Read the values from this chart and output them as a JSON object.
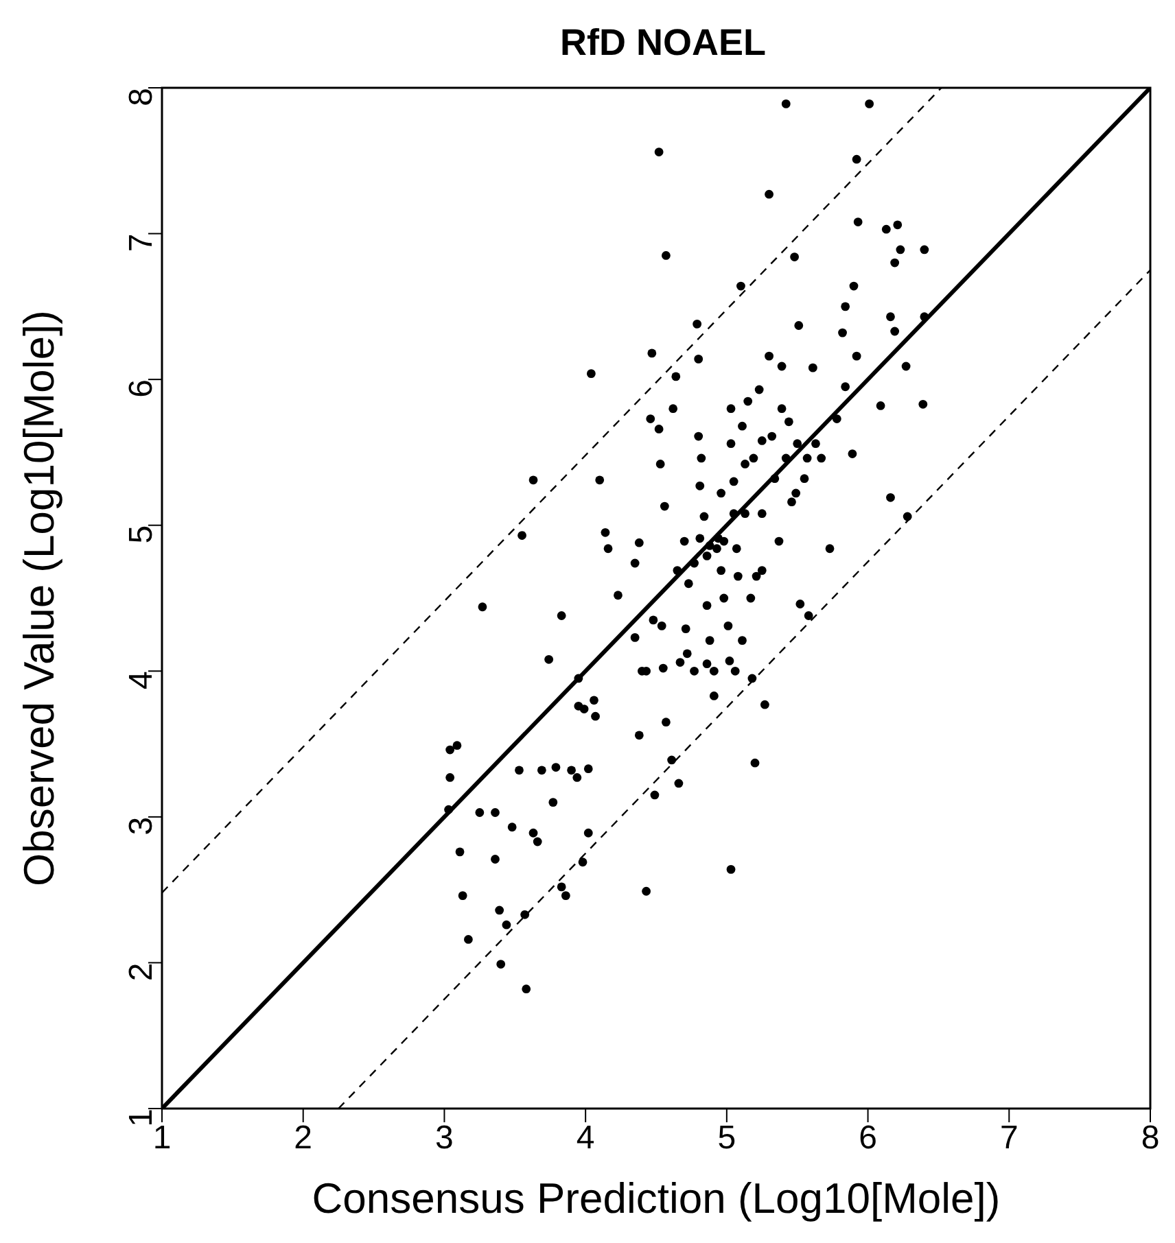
{
  "chart_data": {
    "type": "scatter",
    "title": "RfD NOAEL",
    "xlabel": "Consensus Prediction (Log10[Mole])",
    "ylabel": "Observed Value (Log10[Mole])",
    "xlim": [
      1,
      8
    ],
    "ylim": [
      1,
      8
    ],
    "xticks": [
      1,
      2,
      3,
      4,
      5,
      6,
      7,
      8
    ],
    "yticks": [
      1,
      2,
      3,
      4,
      5,
      6,
      7,
      8
    ],
    "series": [
      {
        "color": "#000000",
        "marker": "circle",
        "x": [
          3.04,
          3.09,
          3.04,
          3.03,
          3.11,
          3.13,
          3.17,
          3.27,
          3.25,
          3.36,
          3.36,
          3.39,
          3.4,
          3.44,
          3.53,
          3.55,
          3.48,
          3.57,
          3.58,
          3.63,
          3.63,
          3.66,
          3.69,
          3.74,
          3.77,
          3.79,
          3.83,
          3.83,
          3.86,
          3.9,
          3.94,
          3.95,
          3.95,
          3.98,
          3.99,
          4.02,
          4.02,
          4.04,
          4.06,
          4.07,
          4.1,
          4.16,
          4.14,
          4.23,
          4.35,
          4.35,
          4.38,
          4.4,
          4.38,
          4.43,
          4.46,
          4.47,
          4.52,
          4.52,
          4.49,
          4.43,
          4.48,
          4.53,
          4.57,
          4.56,
          4.54,
          4.55,
          4.57,
          4.61,
          4.62,
          4.64,
          4.65,
          4.66,
          4.7,
          4.71,
          4.72,
          4.73,
          4.77,
          4.79,
          4.8,
          4.8,
          4.82,
          4.81,
          4.84,
          4.86,
          4.86,
          4.88,
          4.91,
          4.91,
          4.94,
          4.96,
          4.98,
          5.01,
          5.02,
          5.03,
          5.03,
          5.03,
          5.05,
          5.05,
          5.07,
          5.08,
          5.1,
          5.11,
          5.13,
          5.15,
          5.17,
          5.18,
          5.2,
          5.23,
          5.25,
          5.27,
          5.3,
          5.3,
          5.32,
          5.34,
          5.37,
          5.39,
          5.42,
          5.42,
          5.44,
          5.46,
          5.48,
          5.5,
          5.51,
          5.52,
          5.55,
          5.58,
          5.61,
          5.63,
          5.67,
          5.73,
          5.78,
          5.82,
          5.84,
          5.84,
          5.89,
          5.9,
          5.92,
          5.92,
          5.93,
          6.01,
          6.09,
          6.13,
          6.16,
          6.16,
          6.19,
          6.21,
          6.23,
          6.27,
          6.28,
          6.39,
          6.4,
          6.4,
          6.19,
          4.88,
          4.93,
          4.98,
          4.81,
          5.11,
          5.06,
          4.86,
          4.77,
          4.67,
          5.21,
          5.25,
          5.13,
          4.96,
          5.19,
          5.25,
          5.39,
          5.57,
          5.49
        ],
        "values": [
          3.46,
          3.49,
          3.27,
          3.05,
          2.76,
          2.46,
          2.16,
          4.44,
          3.03,
          3.03,
          2.71,
          2.36,
          1.99,
          2.26,
          3.32,
          4.93,
          2.93,
          2.33,
          1.82,
          5.31,
          2.89,
          2.83,
          3.32,
          4.08,
          3.1,
          3.34,
          4.38,
          2.52,
          2.46,
          3.32,
          3.27,
          3.95,
          3.76,
          2.69,
          3.74,
          2.89,
          3.33,
          6.04,
          3.8,
          3.69,
          5.31,
          4.84,
          4.95,
          4.52,
          4.23,
          4.74,
          4.88,
          4.0,
          3.56,
          2.49,
          5.73,
          6.18,
          7.56,
          5.66,
          3.15,
          4.0,
          4.35,
          5.42,
          6.85,
          5.13,
          4.31,
          4.02,
          3.65,
          3.39,
          5.8,
          6.02,
          4.69,
          3.23,
          4.89,
          4.29,
          4.12,
          4.6,
          4.74,
          6.38,
          6.14,
          5.61,
          5.46,
          5.27,
          5.06,
          4.79,
          4.45,
          4.21,
          4.0,
          3.83,
          4.91,
          4.69,
          4.5,
          4.31,
          4.07,
          2.64,
          5.8,
          5.56,
          5.3,
          5.08,
          4.84,
          4.65,
          6.64,
          5.68,
          5.42,
          5.85,
          4.5,
          3.95,
          3.37,
          5.93,
          4.69,
          3.77,
          7.27,
          6.16,
          5.61,
          5.32,
          4.89,
          6.09,
          7.89,
          5.46,
          5.71,
          5.16,
          6.84,
          5.56,
          6.37,
          4.46,
          5.32,
          4.38,
          6.08,
          5.56,
          5.46,
          4.84,
          5.73,
          6.32,
          6.5,
          5.95,
          5.49,
          6.64,
          7.51,
          6.16,
          7.08,
          7.89,
          5.82,
          7.03,
          6.43,
          5.19,
          6.8,
          7.06,
          6.89,
          6.09,
          5.06,
          5.83,
          6.89,
          6.43,
          6.33,
          4.86,
          4.84,
          4.89,
          4.91,
          4.21,
          4.0,
          4.05,
          4.0,
          4.06,
          4.65,
          5.08,
          5.08,
          5.22,
          5.46,
          5.58,
          5.8,
          5.46,
          5.22
        ]
      },
      {
        "type": "line",
        "color": "#000000",
        "line_style": "solid",
        "x": [
          1,
          8
        ],
        "values": [
          1,
          8
        ]
      },
      {
        "type": "line",
        "color": "#000000",
        "line_style": "dashed",
        "x": [
          1,
          6.52
        ],
        "values": [
          2.48,
          8
        ]
      },
      {
        "type": "line",
        "color": "#000000",
        "line_style": "dashed",
        "x": [
          2.25,
          8
        ],
        "values": [
          1,
          6.75
        ]
      }
    ]
  }
}
